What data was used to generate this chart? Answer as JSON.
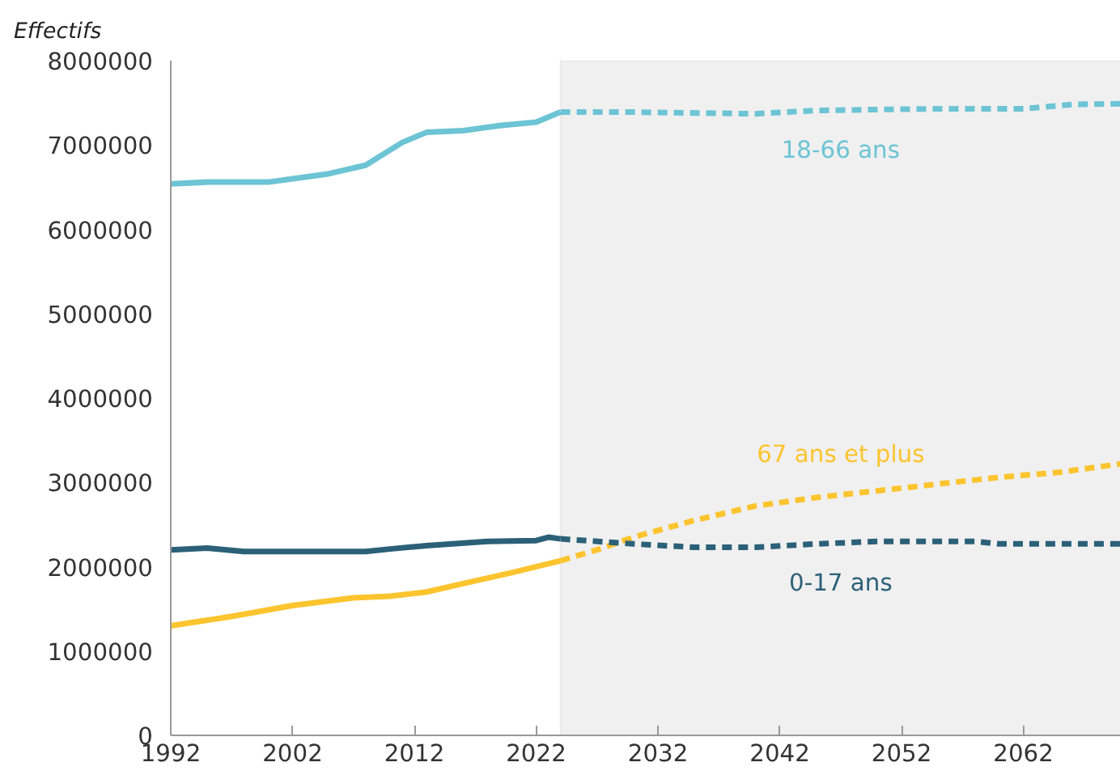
{
  "chart_data": {
    "type": "line",
    "ylabel": "Effectifs",
    "xlim": [
      1992,
      2070
    ],
    "xticks": [
      1992,
      2002,
      2012,
      2022,
      2032,
      2042,
      2052,
      2062
    ],
    "ylim": [
      0,
      8000000
    ],
    "yticks": [
      0,
      1000000,
      2000000,
      3000000,
      4000000,
      5000000,
      6000000,
      7000000,
      8000000
    ],
    "grid": false,
    "legend": false,
    "marker": "none",
    "bands": [
      {
        "axis": "x",
        "from": 2024,
        "to": 2070,
        "color": "#f0f0f0"
      }
    ],
    "series": [
      {
        "color": "#6cc4d4",
        "line_style": "solid",
        "x": [
          1992,
          1995,
          2000,
          2002,
          2005,
          2008,
          2011,
          2013,
          2016,
          2019,
          2022,
          2024
        ],
        "values": [
          6540000,
          6560000,
          6560000,
          6600000,
          6660000,
          6760000,
          7030000,
          7150000,
          7170000,
          7230000,
          7270000,
          7390000
        ]
      },
      {
        "name": "18-66 ans",
        "color": "#6cc4d4",
        "line_style": "dashed",
        "x": [
          2024,
          2030,
          2040,
          2045,
          2055,
          2062,
          2066,
          2070
        ],
        "values": [
          7390000,
          7390000,
          7370000,
          7410000,
          7430000,
          7430000,
          7480000,
          7490000
        ]
      },
      {
        "color": "#fcc42e",
        "line_style": "solid",
        "x": [
          1992,
          1997,
          2002,
          2007,
          2010,
          2013,
          2016,
          2020,
          2024
        ],
        "values": [
          1300000,
          1410000,
          1540000,
          1630000,
          1650000,
          1700000,
          1800000,
          1930000,
          2070000
        ]
      },
      {
        "name": "67 ans et plus",
        "color": "#fcc42e",
        "line_style": "dashed",
        "x": [
          2024,
          2027,
          2030,
          2035,
          2040,
          2045,
          2050,
          2055,
          2060,
          2065,
          2070
        ],
        "values": [
          2070000,
          2200000,
          2350000,
          2550000,
          2720000,
          2820000,
          2900000,
          2980000,
          3060000,
          3120000,
          3220000
        ]
      },
      {
        "color": "#2b6078",
        "line_style": "solid",
        "x": [
          1992,
          1995,
          1998,
          2008,
          2010,
          2013,
          2018,
          2022,
          2023,
          2024
        ],
        "values": [
          2200000,
          2220000,
          2180000,
          2180000,
          2210000,
          2250000,
          2300000,
          2310000,
          2350000,
          2330000
        ]
      },
      {
        "name": "0-17 ans",
        "color": "#2b6078",
        "line_style": "dashed",
        "x": [
          2024,
          2030,
          2035,
          2040,
          2045,
          2050,
          2055,
          2058,
          2060,
          2070
        ],
        "values": [
          2330000,
          2270000,
          2230000,
          2230000,
          2270000,
          2300000,
          2300000,
          2300000,
          2270000,
          2270000
        ]
      }
    ]
  }
}
